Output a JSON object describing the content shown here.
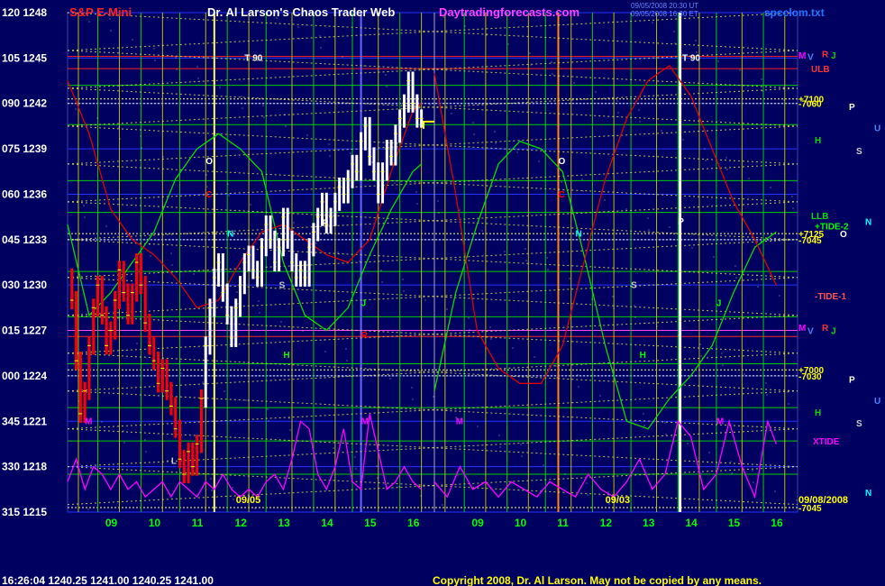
{
  "header": {
    "symbol": "S&P E-Mini",
    "title": "Dr. Al Larson's Chaos Trader Web",
    "site": "Daytradingforecasts.com",
    "file": "spcclom.txt",
    "timestamp_1": "09/05/2008 20:30 UT",
    "timestamp_2": "09/05/2008 16:30 ET"
  },
  "footer": {
    "quote": "16:26:04  1240.25 1241.00 1240.25 1241.00",
    "copyright": "Copyright 2008, Dr. Al Larson. May not be copied by any means."
  },
  "colors": {
    "background": "#000060",
    "price_down": "#ff0000",
    "price_up": "#ffffff",
    "green_curve": "#00dd00",
    "red_curve": "#dd0000",
    "magenta_curve": "#ff00ff",
    "grid_yellow": "#ffff00",
    "grid_green": "#00ee00"
  },
  "chart_data": {
    "type": "line",
    "title": "S&P E-Mini",
    "y_ticks": [
      {
        "code": "120",
        "price": 1248
      },
      {
        "code": "105",
        "price": 1245
      },
      {
        "code": "090",
        "price": 1242
      },
      {
        "code": "075",
        "price": 1239
      },
      {
        "code": "060",
        "price": 1236
      },
      {
        "code": "045",
        "price": 1233
      },
      {
        "code": "030",
        "price": 1230
      },
      {
        "code": "015",
        "price": 1227
      },
      {
        "code": "000",
        "price": 1224
      },
      {
        "code": "345",
        "price": 1221
      },
      {
        "code": "330",
        "price": 1218
      },
      {
        "code": "315",
        "price": 1215
      }
    ],
    "ylim": [
      1215,
      1248
    ],
    "x_range": [
      8.0,
      16.5
    ],
    "x_ticks_left": [
      "09",
      "10",
      "11",
      "12",
      "13",
      "14",
      "15",
      "16"
    ],
    "x_ticks_right": [
      "09",
      "10",
      "11",
      "12",
      "13",
      "14",
      "15",
      "16"
    ],
    "date_left": "09/05",
    "date_right": "09/03",
    "date_label": "09/08/2008",
    "right_axis_labels": [
      {
        "text": "M",
        "price": 1245.2,
        "color": "#ff00ff"
      },
      {
        "text": "V",
        "price": 1245.1,
        "color": "#4488ff"
      },
      {
        "text": "R",
        "price": 1245.3,
        "color": "#ff3333"
      },
      {
        "text": "J",
        "price": 1245.2,
        "color": "#00dd00"
      },
      {
        "text": "ULB",
        "price": 1244.3,
        "color": "#ff3333"
      },
      {
        "text": "+7100",
        "price": 1242.3,
        "color": "#ffff00"
      },
      {
        "text": "-7060",
        "price": 1242.0,
        "color": "#ffff00"
      },
      {
        "text": "P",
        "price": 1241.8,
        "color": "#ffffff"
      },
      {
        "text": "U",
        "price": 1240.4,
        "color": "#4488ff"
      },
      {
        "text": "H",
        "price": 1239.6,
        "color": "#00dd00"
      },
      {
        "text": "S",
        "price": 1238.9,
        "color": "#cccccc"
      },
      {
        "text": "LLB",
        "price": 1234.6,
        "color": "#00dd00"
      },
      {
        "text": "+TIDE-2",
        "price": 1233.9,
        "color": "#00ff00"
      },
      {
        "text": "N",
        "price": 1234.2,
        "color": "#00ffff"
      },
      {
        "text": "O",
        "price": 1233.4,
        "color": "#ffffff"
      },
      {
        "text": "+7125",
        "price": 1233.4,
        "color": "#ffff00"
      },
      {
        "text": "-7045",
        "price": 1233.0,
        "color": "#ffff00"
      },
      {
        "text": "-TIDE-1",
        "price": 1229.3,
        "color": "#ff5555"
      },
      {
        "text": "M",
        "price": 1227.2,
        "color": "#ff00ff"
      },
      {
        "text": "V",
        "price": 1227.0,
        "color": "#4488ff"
      },
      {
        "text": "R",
        "price": 1227.2,
        "color": "#ff3333"
      },
      {
        "text": "J",
        "price": 1227.0,
        "color": "#00dd00"
      },
      {
        "text": "+7000",
        "price": 1224.4,
        "color": "#ffff00"
      },
      {
        "text": "-7030",
        "price": 1224.0,
        "color": "#ffff00"
      },
      {
        "text": "P",
        "price": 1223.8,
        "color": "#ffffff"
      },
      {
        "text": "U",
        "price": 1222.4,
        "color": "#4488ff"
      },
      {
        "text": "H",
        "price": 1221.6,
        "color": "#00dd00"
      },
      {
        "text": "S",
        "price": 1220.9,
        "color": "#cccccc"
      },
      {
        "text": "XTIDE",
        "price": 1219.7,
        "color": "#ff00ff"
      },
      {
        "text": "N",
        "price": 1216.3,
        "color": "#00ffff"
      },
      {
        "text": "-7045",
        "price": 1215.3,
        "color": "#ffff00"
      }
    ],
    "plot_labels": [
      {
        "text": "T 90",
        "x": 12.1,
        "price": 1244.8,
        "color": "#ffffff"
      },
      {
        "text": "T 90",
        "x": 13.8,
        "price": 1244.8,
        "color": "#ffffff",
        "side": "right"
      },
      {
        "text": "O",
        "x": 11.2,
        "price": 1238.0,
        "color": "#ffffff"
      },
      {
        "text": "C",
        "x": 11.2,
        "price": 1235.8,
        "color": "#ff0000"
      },
      {
        "text": "N",
        "x": 11.7,
        "price": 1233.2,
        "color": "#00ffff"
      },
      {
        "text": "P",
        "x": 13.9,
        "price": 1233.9,
        "color": "#ffffff"
      },
      {
        "text": "S",
        "x": 12.9,
        "price": 1229.8,
        "color": "#cccccc"
      },
      {
        "text": "H",
        "x": 13.0,
        "price": 1225.2,
        "color": "#00ff00"
      },
      {
        "text": "J",
        "x": 14.8,
        "price": 1228.6,
        "color": "#00ff00"
      },
      {
        "text": "R",
        "x": 14.8,
        "price": 1226.5,
        "color": "#ff0000"
      },
      {
        "text": "M",
        "x": 8.4,
        "price": 1220.8,
        "color": "#ff00ff"
      },
      {
        "text": "M",
        "x": 14.8,
        "price": 1220.8,
        "color": "#ff00ff"
      },
      {
        "text": "L",
        "x": 10.4,
        "price": 1218.2,
        "color": "#cccccc"
      },
      {
        "text": "O",
        "x": 10.9,
        "price": 1238.0,
        "color": "#ffffff",
        "side": "right"
      },
      {
        "text": "C",
        "x": 10.9,
        "price": 1235.8,
        "color": "#ff0000",
        "side": "right"
      },
      {
        "text": "N",
        "x": 11.3,
        "price": 1233.2,
        "color": "#00ffff",
        "side": "right"
      },
      {
        "text": "P",
        "x": 13.7,
        "price": 1234.0,
        "color": "#ffffff",
        "side": "right"
      },
      {
        "text": "S",
        "x": 12.6,
        "price": 1229.8,
        "color": "#cccccc",
        "side": "right"
      },
      {
        "text": "H",
        "x": 12.8,
        "price": 1225.2,
        "color": "#00ff00",
        "side": "right"
      },
      {
        "text": "J",
        "x": 14.6,
        "price": 1228.6,
        "color": "#00ff00",
        "side": "right"
      },
      {
        "text": "M",
        "x": 8.5,
        "price": 1220.8,
        "color": "#ff00ff",
        "side": "right"
      },
      {
        "text": "M",
        "x": 14.6,
        "price": 1220.8,
        "color": "#ff00ff",
        "side": "right"
      }
    ],
    "series": [
      {
        "name": "price",
        "x": [
          8.0,
          8.1,
          8.2,
          8.3,
          8.4,
          8.5,
          8.6,
          8.7,
          8.8,
          8.9,
          9.0,
          9.1,
          9.2,
          9.3,
          9.4,
          9.5,
          9.6,
          9.7,
          9.8,
          9.9,
          10.0,
          10.1,
          10.2,
          10.3,
          10.4,
          10.5,
          10.6,
          10.7,
          10.8,
          10.9,
          11.0,
          11.1,
          11.2,
          11.3,
          11.4,
          11.5,
          11.6,
          11.7,
          11.8,
          11.9,
          12.0,
          12.1,
          12.2,
          12.3,
          12.4,
          12.5,
          12.6,
          12.7,
          12.8,
          12.9,
          13.0,
          13.1,
          13.2,
          13.3,
          13.4,
          13.5,
          13.6,
          13.7,
          13.8,
          13.9,
          14.0,
          14.1,
          14.2,
          14.3,
          14.4,
          14.5,
          14.6,
          14.7,
          14.8,
          14.9,
          15.0,
          15.1,
          15.2,
          15.3,
          15.4,
          15.5,
          15.6,
          15.7,
          15.8,
          15.9,
          16.0,
          16.1,
          16.2
        ],
        "values": [
          1230.5,
          1229.0,
          1225.0,
          1221.5,
          1223.0,
          1226.0,
          1228.5,
          1230.0,
          1228.0,
          1226.0,
          1227.0,
          1229.0,
          1231.0,
          1229.5,
          1228.0,
          1229.5,
          1231.5,
          1230.0,
          1227.5,
          1226.0,
          1225.0,
          1223.5,
          1224.5,
          1223.0,
          1222.0,
          1220.5,
          1218.5,
          1217.5,
          1219.0,
          1218.0,
          1219.5,
          1222.5,
          1226.0,
          1228.5,
          1230.5,
          1231.5,
          1229.5,
          1228.0,
          1226.5,
          1228.5,
          1230.0,
          1231.5,
          1232.0,
          1231.0,
          1230.5,
          1232.5,
          1234.0,
          1233.0,
          1231.5,
          1232.5,
          1234.5,
          1233.0,
          1231.5,
          1230.5,
          1231.0,
          1230.5,
          1232.5,
          1233.5,
          1234.5,
          1235.5,
          1234.0,
          1234.5,
          1235.5,
          1236.5,
          1236.0,
          1237.0,
          1238.0,
          1237.5,
          1239.5,
          1240.5,
          1238.5,
          1237.5,
          1236.0,
          1237.5,
          1239.0,
          1238.5,
          1240.0,
          1241.0,
          1242.0,
          1243.5,
          1242.0,
          1241.0,
          1241.0
        ]
      },
      {
        "name": "green",
        "x": [
          8.0,
          8.5,
          9.0,
          9.5,
          10.0,
          10.5,
          11.0,
          11.5,
          12.0,
          12.5,
          13.0,
          13.5,
          14.0,
          14.5,
          15.0,
          15.5,
          16.0,
          16.2
        ],
        "values": [
          1234.0,
          1228.0,
          1229.5,
          1231.5,
          1233.5,
          1237.0,
          1239.0,
          1240.0,
          1239.0,
          1237.5,
          1231.5,
          1228.0,
          1227.0,
          1228.5,
          1232.0,
          1235.0,
          1237.5,
          1238.0
        ]
      },
      {
        "name": "red",
        "x": [
          8.0,
          8.5,
          9.0,
          9.5,
          10.0,
          10.5,
          11.0,
          11.5,
          12.0,
          12.5,
          13.0,
          13.5,
          14.0,
          14.5,
          15.0,
          15.5,
          16.0,
          16.2
        ],
        "values": [
          1243.5,
          1240.0,
          1235.0,
          1233.0,
          1232.0,
          1230.5,
          1228.5,
          1229.0,
          1231.5,
          1233.5,
          1234.0,
          1233.0,
          1232.0,
          1231.5,
          1233.0,
          1237.5,
          1241.5,
          1242.0
        ]
      },
      {
        "name": "magenta",
        "x": [
          8.0,
          8.2,
          8.4,
          8.6,
          8.8,
          9.0,
          9.2,
          9.4,
          9.6,
          9.8,
          10.0,
          10.2,
          10.4,
          10.6,
          10.8,
          11.0,
          11.2,
          11.4,
          11.6,
          11.8,
          12.0,
          12.2,
          12.4,
          12.6,
          12.8,
          13.0,
          13.2,
          13.4,
          13.6,
          13.8,
          14.0,
          14.2,
          14.4,
          14.6,
          14.8,
          15.0,
          15.2,
          15.4,
          15.6,
          15.8,
          16.0,
          16.2
        ],
        "values": [
          1217.0,
          1218.5,
          1216.5,
          1218.0,
          1217.5,
          1216.5,
          1217.5,
          1216.5,
          1217.0,
          1216.0,
          1216.5,
          1217.0,
          1216.0,
          1217.0,
          1216.5,
          1216.0,
          1217.0,
          1216.5,
          1217.5,
          1216.5,
          1216.0,
          1216.5,
          1216.0,
          1217.0,
          1217.5,
          1216.5,
          1218.5,
          1221.0,
          1220.5,
          1217.5,
          1216.5,
          1218.0,
          1220.5,
          1217.0,
          1216.5,
          1221.5,
          1219.0,
          1216.5,
          1217.0,
          1218.0,
          1217.0,
          1216.5
        ]
      }
    ],
    "right_series": [
      {
        "name": "green",
        "x": [
          8.0,
          8.5,
          9.0,
          9.5,
          10.0,
          10.5,
          11.0,
          11.5,
          12.0,
          12.5,
          13.0,
          13.5,
          14.0,
          14.5,
          15.0,
          15.5,
          16.0
        ],
        "values": [
          1223.0,
          1229.5,
          1234.0,
          1238.0,
          1239.5,
          1239.0,
          1237.5,
          1232.0,
          1226.0,
          1221.0,
          1220.5,
          1222.5,
          1224.0,
          1226.0,
          1229.5,
          1232.5,
          1233.5
        ]
      },
      {
        "name": "red",
        "x": [
          8.0,
          8.5,
          9.0,
          9.5,
          10.0,
          10.5,
          11.0,
          11.5,
          12.0,
          12.5,
          13.0,
          13.5,
          14.0,
          14.5,
          15.0,
          15.5,
          16.0
        ],
        "values": [
          1244.0,
          1236.0,
          1227.0,
          1224.5,
          1223.5,
          1223.5,
          1226.0,
          1231.5,
          1237.0,
          1241.0,
          1243.5,
          1244.5,
          1242.5,
          1239.0,
          1235.5,
          1233.0,
          1230.0
        ]
      },
      {
        "name": "magenta",
        "x": [
          8.0,
          8.3,
          8.6,
          8.9,
          9.2,
          9.5,
          9.8,
          10.1,
          10.4,
          10.7,
          11.0,
          11.3,
          11.6,
          11.9,
          12.2,
          12.5,
          12.8,
          13.1,
          13.4,
          13.7,
          14.0,
          14.3,
          14.6,
          14.9,
          15.2,
          15.5,
          15.8,
          16.0
        ],
        "values": [
          1217.0,
          1216.0,
          1218.0,
          1216.5,
          1217.0,
          1216.0,
          1217.0,
          1216.5,
          1216.0,
          1217.0,
          1216.5,
          1216.0,
          1217.5,
          1216.5,
          1216.0,
          1217.0,
          1218.5,
          1216.5,
          1217.5,
          1221.0,
          1220.0,
          1216.5,
          1217.5,
          1221.0,
          1218.0,
          1216.0,
          1221.0,
          1219.5
        ]
      }
    ],
    "grid": true,
    "legend": "none"
  }
}
